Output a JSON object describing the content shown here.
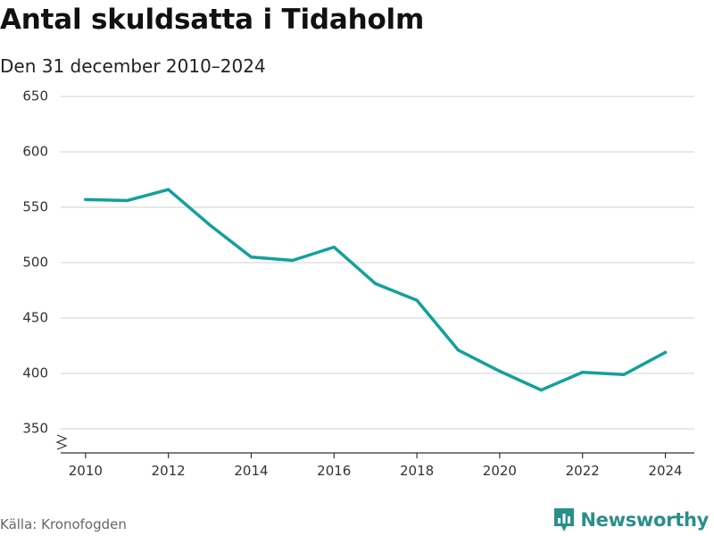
{
  "header": {
    "title": "Antal skuldsatta i Tidaholm",
    "subtitle": "Den 31 december 2010–2024"
  },
  "footer": {
    "source": "Källa: Kronofogden",
    "brand": "Newsworthy",
    "brand_icon": "newsworthy-chart-logo-icon"
  },
  "colors": {
    "line": "#12a19a",
    "grid": "#d9d9d9",
    "axis": "#333333",
    "brand": "#2a8f8a"
  },
  "chart_data": {
    "type": "line",
    "title": "Antal skuldsatta i Tidaholm",
    "subtitle": "Den 31 december 2010–2024",
    "xlabel": "",
    "ylabel": "",
    "x": [
      2010,
      2011,
      2012,
      2013,
      2014,
      2015,
      2016,
      2017,
      2018,
      2019,
      2020,
      2021,
      2022,
      2023,
      2024
    ],
    "series": [
      {
        "name": "Antal skuldsatta",
        "values": [
          557,
          556,
          566,
          534,
          505,
          502,
          514,
          481,
          466,
          421,
          402,
          385,
          401,
          399,
          419
        ]
      }
    ],
    "xlim": [
      2009.4,
      2024.7
    ],
    "ylim": [
      350,
      650
    ],
    "y_ticks": [
      350,
      400,
      450,
      500,
      550,
      600,
      650
    ],
    "y_tick_labels": [
      "350",
      "400",
      "450",
      "500",
      "550",
      "600",
      "650"
    ],
    "x_ticks": [
      2010,
      2012,
      2014,
      2016,
      2018,
      2020,
      2022,
      2024
    ],
    "x_tick_labels": [
      "2010",
      "2012",
      "2014",
      "2016",
      "2018",
      "2020",
      "2022",
      "2024"
    ],
    "grid": true,
    "legend": "none",
    "axis_break": "y-axis break below 350"
  }
}
